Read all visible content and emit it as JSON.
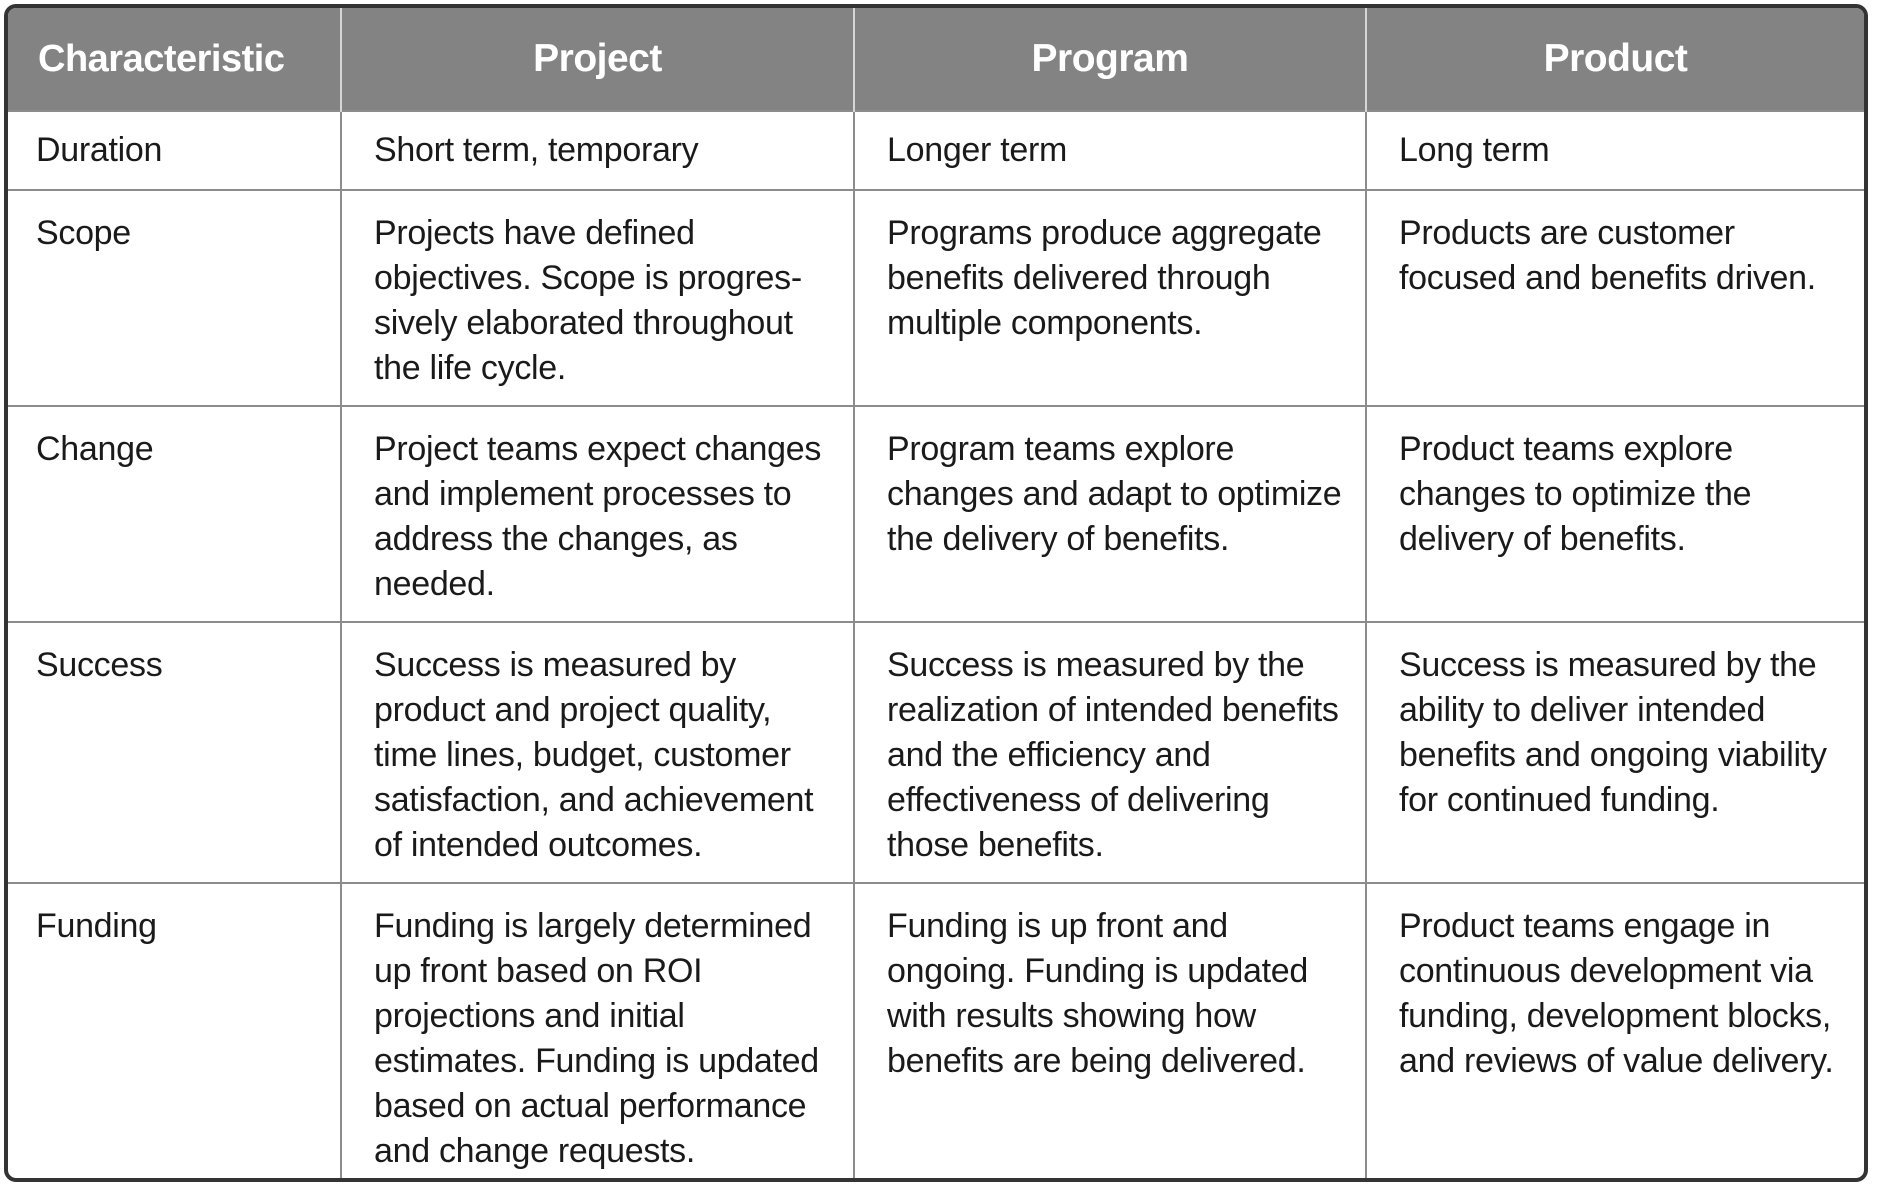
{
  "table": {
    "headers": [
      "Characteristic",
      "Project",
      "Program",
      "Product"
    ],
    "rows": [
      {
        "characteristic": "Duration",
        "project": "Short term, temporary",
        "program": "Longer term",
        "product": "Long term"
      },
      {
        "characteristic": "Scope",
        "project": "Projects have defined objectives. Scope is progres-sively elaborated throughout the life cycle.",
        "program": "Programs produce aggregate benefits delivered through multiple components.",
        "product": "Products are customer focused and benefits driven."
      },
      {
        "characteristic": "Change",
        "project": "Project teams expect changes and implement processes to address the changes, as needed.",
        "program": "Program teams explore changes and adapt to optimize the delivery of benefits.",
        "product": "Product teams explore changes to optimize the delivery of benefits."
      },
      {
        "characteristic": "Success",
        "project": "Success is measured by product and project quality, time lines, budget, customer satisfaction, and achievement of intended outcomes.",
        "program": "Success is measured by the realization of intended benefits and the efficiency and effectiveness of delivering those benefits.",
        "product": "Success is measured by the ability to deliver intended benefits and ongoing viability for continued funding."
      },
      {
        "characteristic": "Funding",
        "project": "Funding is largely determined up front based on ROI projections and initial estimates. Funding is updated based on actual performance and change requests.",
        "program": "Funding is up front and ongoing. Funding is updated with results showing how benefits are being delivered.",
        "product": "Product teams engage in continuous development via funding, development blocks, and reviews of value delivery."
      }
    ]
  },
  "colors": {
    "header_background": "#838383",
    "header_text": "#ffffff",
    "border": "#333333"
  }
}
